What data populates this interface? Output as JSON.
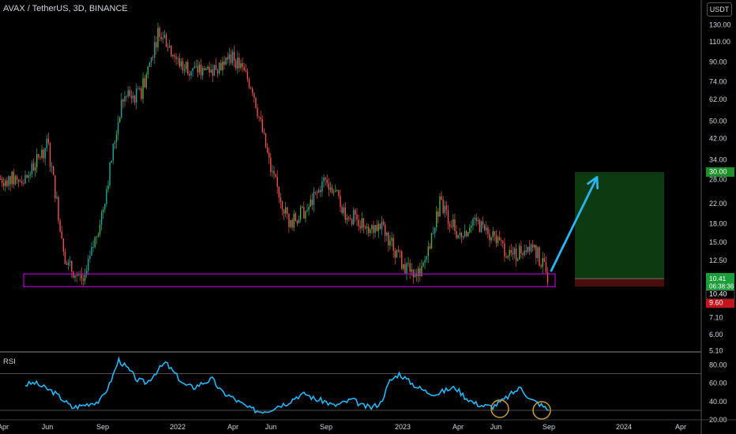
{
  "header": {
    "title": "AVAX / TetherUS, 3D, BINANCE",
    "currency_button": "USDT"
  },
  "price_scale": {
    "ticks": [
      "130.00",
      "110.00",
      "90.00",
      "74.00",
      "62.00",
      "50.00",
      "42.00",
      "34.00",
      "28.00",
      "22.00",
      "18.00",
      "15.00",
      "12.50",
      "7.10",
      "6.00",
      "5.10"
    ],
    "badges": {
      "target": "30.00",
      "last": "10.41",
      "countdown": "06:38:36",
      "entry": "10.40",
      "stop": "9.60"
    }
  },
  "rsi_panel": {
    "label": "RSI",
    "ticks": [
      "80.00",
      "60.00",
      "40.00",
      "20.00"
    ],
    "upper_band": 70,
    "lower_band": 30
  },
  "time_axis": [
    "Apr",
    "Jun",
    "Sep",
    "2022",
    "Apr",
    "Jun",
    "Sep",
    "2023",
    "Apr",
    "Jun",
    "Sep",
    "2024",
    "Apr"
  ],
  "colors": {
    "background": "#000000",
    "up_candle": "#26a69a",
    "candle_green": "#4caf50",
    "down_candle": "#ef5350",
    "rsi_line": "#29b6f6",
    "support_box": "#b000c8",
    "arrow": "#29b6f6",
    "target_zone": "#0d3a10",
    "stop_zone": "#4a0d0d",
    "highlight_circle": "#c89b3c",
    "grid": "#555555"
  },
  "chart_data": {
    "type": "candlestick",
    "symbol": "AVAX / TetherUS",
    "interval": "3D",
    "exchange": "BINANCE",
    "scale": "log",
    "ylim": [
      5.1,
      140
    ],
    "support_zone": [
      9.6,
      10.9
    ],
    "trade_setup": {
      "entry": 10.4,
      "target": 30.0,
      "stop": 9.6
    },
    "close_path": {
      "dates": [
        "2021-04",
        "2021-05",
        "2021-06",
        "2021-07",
        "2021-08",
        "2021-09",
        "2021-10",
        "2021-11",
        "2021-12",
        "2022-01",
        "2022-02",
        "2022-03",
        "2022-04",
        "2022-05",
        "2022-06",
        "2022-07",
        "2022-08",
        "2022-09",
        "2022-10",
        "2022-11",
        "2022-12",
        "2023-01",
        "2023-02",
        "2023-03",
        "2023-04",
        "2023-05",
        "2023-06",
        "2023-07",
        "2023-08"
      ],
      "values": [
        28,
        40,
        12,
        10.2,
        21,
        62,
        65,
        125,
        90,
        82,
        85,
        95,
        70,
        30,
        18,
        21,
        28,
        20,
        18,
        17,
        12,
        11,
        22,
        16,
        18,
        15,
        13,
        15,
        10.4
      ]
    },
    "rsi": {
      "values": [
        58,
        60,
        55,
        50,
        42,
        33,
        35,
        38,
        40,
        58,
        85,
        75,
        63,
        60,
        72,
        82,
        70,
        58,
        55,
        60,
        64,
        50,
        45,
        38,
        32,
        29,
        30,
        35,
        38,
        45,
        48,
        42,
        40,
        35,
        38,
        42,
        35,
        33,
        38,
        62,
        70,
        62,
        55,
        50,
        48,
        52,
        55,
        45,
        38,
        35,
        34,
        40,
        48,
        55,
        42,
        37,
        30
      ]
    }
  }
}
